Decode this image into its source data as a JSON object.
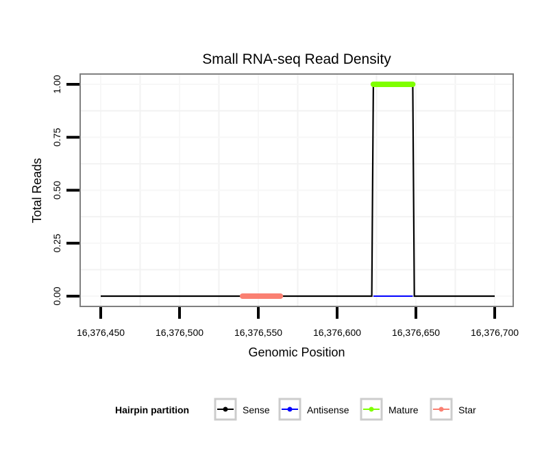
{
  "chart_data": {
    "type": "line",
    "title": "Small RNA-seq Read Density",
    "xlabel": "Genomic Position",
    "ylabel": "Total Reads",
    "xlim": [
      16376440,
      16376711
    ],
    "ylim": [
      -0.05,
      1.05
    ],
    "x_ticks": [
      16376450,
      16376500,
      16376550,
      16376600,
      16376650,
      16376700
    ],
    "x_tick_labels": [
      "16,376,450",
      "16,376,500",
      "16,376,550",
      "16,376,600",
      "16,376,650",
      "16,376,700"
    ],
    "y_ticks": [
      0,
      0.25,
      0.5,
      0.75,
      1.0
    ],
    "y_tick_labels": [
      "0.00",
      "0.25",
      "0.50",
      "0.75",
      "1.00"
    ],
    "grid": true,
    "legend": {
      "title": "Hairpin partition",
      "placement": "bottom",
      "entries": [
        "Sense",
        "Antisense",
        "Mature",
        "Star"
      ]
    },
    "series": [
      {
        "name": "Sense",
        "color": "#000000",
        "x": [
          16376450,
          16376622,
          16376623,
          16376648,
          16376649,
          16376700
        ],
        "y": [
          0,
          0,
          1,
          1,
          0,
          0
        ]
      },
      {
        "name": "Antisense",
        "color": "#0000ff",
        "x": [
          16376623,
          16376648
        ],
        "y": [
          0,
          0
        ]
      },
      {
        "name": "Mature",
        "color": "#7fff00",
        "x": [
          16376623,
          16376648
        ],
        "y": [
          1,
          1
        ]
      },
      {
        "name": "Star",
        "color": "#fa8072",
        "x": [
          16376540,
          16376564
        ],
        "y": [
          0,
          0
        ]
      }
    ]
  }
}
